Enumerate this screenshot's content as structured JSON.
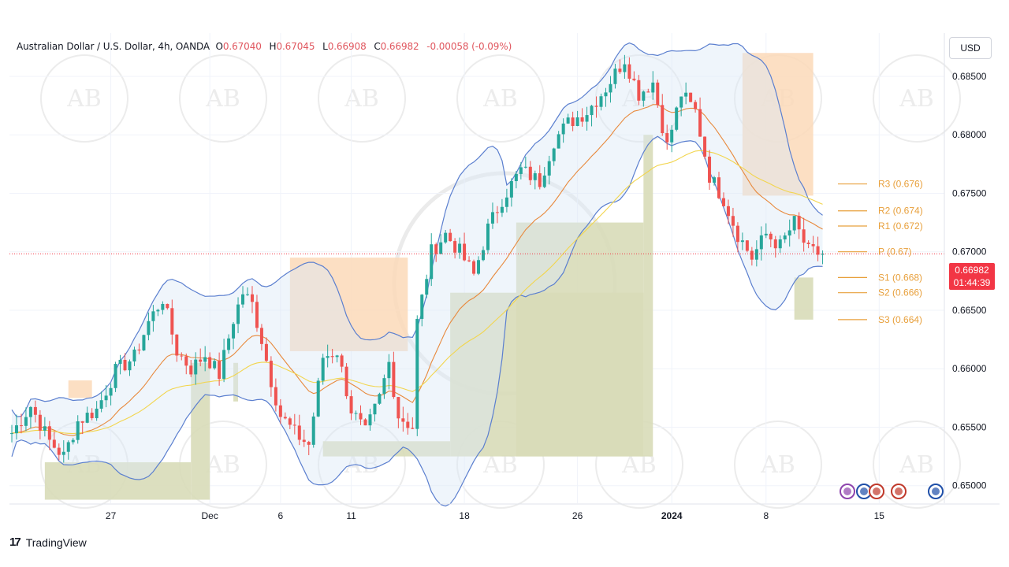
{
  "header": {
    "symbol": "Australian Dollar / U.S. Dollar, 4h, OANDA",
    "open_label": "O",
    "open": "0.67040",
    "high_label": "H",
    "high": "0.67045",
    "low_label": "L",
    "low": "0.66908",
    "close_label": "C",
    "close": "0.66982",
    "change": "-0.00058 (-0.09%)"
  },
  "currency_button": "USD",
  "price_tag": {
    "price": "0.66982",
    "countdown": "01:44:39"
  },
  "footer": {
    "brand": "TradingView",
    "logo_text": "17"
  },
  "colors": {
    "up": "#26a69a",
    "down": "#ef5350",
    "band": "#5b7fcf",
    "ema_fast": "#e8893c",
    "ema_slow": "#f2d54d",
    "pivot": "#e8a03c",
    "supply": "#fcd9b8",
    "demand": "#d8dcb8"
  },
  "chart_data": {
    "type": "candlestick",
    "ylim": [
      0.6485,
      0.6887
    ],
    "y_ticks": [
      "0.65000",
      "0.65500",
      "0.66000",
      "0.66500",
      "0.67000",
      "0.67500",
      "0.68000",
      "0.68500"
    ],
    "x_ticks": [
      {
        "label": "27",
        "bar": 21
      },
      {
        "label": "Dec",
        "bar": 42
      },
      {
        "label": "6",
        "bar": 57
      },
      {
        "label": "11",
        "bar": 72
      },
      {
        "label": "18",
        "bar": 96
      },
      {
        "label": "26",
        "bar": 120
      },
      {
        "label": "2024",
        "bar": 140
      },
      {
        "label": "8",
        "bar": 160
      },
      {
        "label": "15",
        "bar": 184
      }
    ],
    "pivots": [
      {
        "label": "R3 (0.676)",
        "value": 0.6758
      },
      {
        "label": "R2 (0.674)",
        "value": 0.6735
      },
      {
        "label": "R1 (0.672)",
        "value": 0.6722
      },
      {
        "label": "P (0.67)",
        "value": 0.67
      },
      {
        "label": "S1 (0.668)",
        "value": 0.6678
      },
      {
        "label": "S2 (0.666)",
        "value": 0.6665
      },
      {
        "label": "S3 (0.664)",
        "value": 0.6642
      }
    ],
    "current_price": 0.66982,
    "keypoints": [
      [
        0,
        0.6545
      ],
      [
        4,
        0.6568
      ],
      [
        8,
        0.6538
      ],
      [
        11,
        0.6525
      ],
      [
        14,
        0.6555
      ],
      [
        18,
        0.6565
      ],
      [
        22,
        0.6598
      ],
      [
        26,
        0.661
      ],
      [
        29,
        0.664
      ],
      [
        32,
        0.666
      ],
      [
        35,
        0.6615
      ],
      [
        38,
        0.66
      ],
      [
        41,
        0.6612
      ],
      [
        44,
        0.6595
      ],
      [
        47,
        0.6642
      ],
      [
        49,
        0.6665
      ],
      [
        51,
        0.6655
      ],
      [
        53,
        0.6625
      ],
      [
        55,
        0.659
      ],
      [
        57,
        0.656
      ],
      [
        60,
        0.6545
      ],
      [
        63,
        0.6535
      ],
      [
        66,
        0.661
      ],
      [
        69,
        0.6615
      ],
      [
        72,
        0.6565
      ],
      [
        75,
        0.6545
      ],
      [
        78,
        0.6575
      ],
      [
        80,
        0.6605
      ],
      [
        82,
        0.656
      ],
      [
        85,
        0.655
      ],
      [
        86,
        0.664
      ],
      [
        89,
        0.67
      ],
      [
        92,
        0.6715
      ],
      [
        95,
        0.67
      ],
      [
        98,
        0.668
      ],
      [
        101,
        0.672
      ],
      [
        104,
        0.6745
      ],
      [
        108,
        0.677
      ],
      [
        112,
        0.676
      ],
      [
        115,
        0.6795
      ],
      [
        118,
        0.681
      ],
      [
        122,
        0.682
      ],
      [
        126,
        0.684
      ],
      [
        130,
        0.6865
      ],
      [
        133,
        0.6835
      ],
      [
        136,
        0.6845
      ],
      [
        139,
        0.679
      ],
      [
        142,
        0.6835
      ],
      [
        145,
        0.682
      ],
      [
        148,
        0.6765
      ],
      [
        151,
        0.6745
      ],
      [
        154,
        0.6715
      ],
      [
        157,
        0.6695
      ],
      [
        160,
        0.6715
      ],
      [
        163,
        0.6705
      ],
      [
        166,
        0.6725
      ],
      [
        169,
        0.67
      ],
      [
        172,
        0.6698
      ]
    ],
    "supply_zones": [
      {
        "start_bar": 12,
        "end_bar": 17,
        "top": 0.659,
        "bottom": 0.6575
      },
      {
        "start_bar": 59,
        "end_bar": 84,
        "top": 0.6695,
        "bottom": 0.6615
      },
      {
        "start_bar": 155,
        "end_bar": 170,
        "top": 0.687,
        "bottom": 0.6748
      }
    ],
    "demand_zones": [
      {
        "start_bar": 7,
        "end_bar": 38,
        "top": 0.652,
        "bottom": 0.6488
      },
      {
        "start_bar": 38,
        "end_bar": 42,
        "top": 0.6605,
        "bottom": 0.6488
      },
      {
        "start_bar": 47,
        "end_bar": 48,
        "top": 0.6605,
        "bottom": 0.6572
      },
      {
        "start_bar": 66,
        "end_bar": 93,
        "top": 0.6538,
        "bottom": 0.6525
      },
      {
        "start_bar": 93,
        "end_bar": 134,
        "top": 0.6665,
        "bottom": 0.6525
      },
      {
        "start_bar": 107,
        "end_bar": 134,
        "top": 0.6725,
        "bottom": 0.6525
      },
      {
        "start_bar": 134,
        "end_bar": 136,
        "top": 0.68,
        "bottom": 0.6525
      },
      {
        "start_bar": 166,
        "end_bar": 170,
        "top": 0.6678,
        "bottom": 0.6642
      }
    ]
  }
}
